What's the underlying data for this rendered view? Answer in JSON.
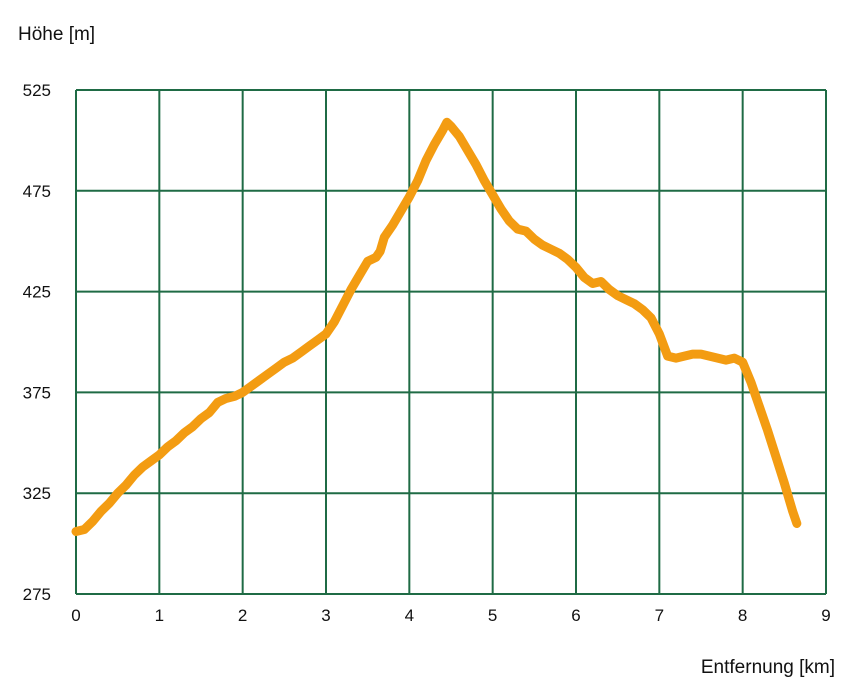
{
  "chart_data": {
    "type": "line",
    "title": "",
    "xlabel": "Entfernung [km]",
    "ylabel": "Höhe [m]",
    "xlim": [
      0,
      9
    ],
    "ylim": [
      275,
      525
    ],
    "x_ticks": [
      "0",
      "1",
      "2",
      "3",
      "4",
      "5",
      "6",
      "7",
      "8",
      "9"
    ],
    "y_ticks": [
      "525",
      "475",
      "425",
      "375",
      "325",
      "275"
    ],
    "grid": true,
    "colors": {
      "line": "#F39C12",
      "grid": "#1F6B45",
      "text": "#111111"
    },
    "series": [
      {
        "x": [
          0,
          0.1,
          0.2,
          0.3,
          0.4,
          0.5,
          0.6,
          0.7,
          0.8,
          0.9,
          1.0,
          1.1,
          1.2,
          1.3,
          1.4,
          1.5,
          1.6,
          1.7,
          1.8,
          1.9,
          2.0,
          2.1,
          2.2,
          2.3,
          2.4,
          2.5,
          2.6,
          2.7,
          2.8,
          2.9,
          3.0,
          3.1,
          3.2,
          3.3,
          3.4,
          3.5,
          3.6,
          3.65,
          3.7,
          3.8,
          3.9,
          4.0,
          4.1,
          4.2,
          4.3,
          4.4,
          4.45,
          4.5,
          4.6,
          4.7,
          4.8,
          4.9,
          5.0,
          5.1,
          5.2,
          5.3,
          5.4,
          5.5,
          5.6,
          5.7,
          5.8,
          5.9,
          6.0,
          6.1,
          6.2,
          6.3,
          6.4,
          6.5,
          6.6,
          6.7,
          6.8,
          6.9,
          7.0,
          7.1,
          7.2,
          7.3,
          7.4,
          7.5,
          7.6,
          7.7,
          7.8,
          7.9,
          8.0,
          8.1,
          8.2,
          8.3,
          8.4,
          8.5,
          8.6,
          8.65
        ],
        "values": [
          306,
          307,
          311,
          316,
          320,
          325,
          329,
          334,
          338,
          341,
          344,
          348,
          351,
          355,
          358,
          362,
          365,
          370,
          372,
          373,
          375,
          378,
          381,
          384,
          387,
          390,
          392,
          395,
          398,
          401,
          404,
          410,
          418,
          426,
          433,
          440,
          442,
          445,
          452,
          458,
          465,
          472,
          480,
          490,
          498,
          505,
          509,
          507,
          502,
          495,
          488,
          480,
          473,
          466,
          460,
          456,
          455,
          451,
          448,
          446,
          444,
          441,
          437,
          432,
          429,
          430,
          426,
          423,
          421,
          419,
          416,
          412,
          404,
          393,
          392,
          393,
          394,
          394,
          393,
          392,
          391,
          392,
          390,
          380,
          368,
          356,
          343,
          330,
          316,
          310
        ]
      }
    ]
  }
}
